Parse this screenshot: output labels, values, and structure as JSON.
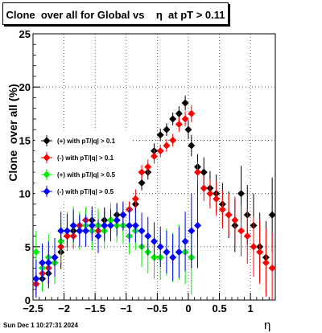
{
  "title": "Clone  over all for Global vs    η  at pT > 0.11",
  "ylabel": "Clone  over all (%)",
  "xlabel": "η",
  "footer": "Sun Dec  1 10:27:31 2024",
  "chart_data": {
    "type": "scatter",
    "title": "Clone  over all for Global vs    η  at pT > 0.11",
    "xlabel": "η",
    "ylabel": "Clone  over all (%)",
    "xlim": [
      -2.5,
      1.4
    ],
    "ylim": [
      0,
      25
    ],
    "xticks": [
      -2.5,
      -2,
      -1.5,
      -1,
      -0.5,
      0,
      0.5,
      1
    ],
    "xtick_labels": [
      "−2.5",
      "−2",
      "−1.5",
      "−1",
      "−0.5",
      "0",
      "0.5",
      "1"
    ],
    "yticks": [
      0,
      5,
      10,
      15,
      20,
      25
    ],
    "grid": true,
    "legend_position": "left-middle",
    "series": [
      {
        "name": "(+) with pT/|q| > 0.1",
        "color": "#000000",
        "points": [
          [
            -2.45,
            1.5,
            1
          ],
          [
            -2.35,
            2,
            1.2
          ],
          [
            -2.25,
            2.5,
            1.4
          ],
          [
            -2.15,
            4,
            1.8
          ],
          [
            -2.05,
            4.5,
            1.6
          ],
          [
            -1.95,
            6,
            1.4
          ],
          [
            -1.85,
            6.5,
            1.2
          ],
          [
            -1.75,
            7,
            1.1
          ],
          [
            -1.65,
            7.5,
            1.2
          ],
          [
            -1.55,
            7.5,
            1.3
          ],
          [
            -1.45,
            7,
            1.4
          ],
          [
            -1.35,
            7.5,
            1.2
          ],
          [
            -1.25,
            7.5,
            1.2
          ],
          [
            -1.15,
            8,
            1.1
          ],
          [
            -1.05,
            8,
            1.1
          ],
          [
            -0.95,
            8.5,
            1
          ],
          [
            -0.85,
            9,
            0.8
          ],
          [
            -0.75,
            11,
            0.7
          ],
          [
            -0.65,
            12,
            0.7
          ],
          [
            -0.55,
            14,
            0.7
          ],
          [
            -0.45,
            15.5,
            0.6
          ],
          [
            -0.35,
            16,
            0.6
          ],
          [
            -0.25,
            17,
            0.6
          ],
          [
            -0.15,
            17.5,
            0.7
          ],
          [
            -0.05,
            18.5,
            0.7
          ],
          [
            0.0,
            16,
            0.9
          ],
          [
            0.05,
            14.5,
            1
          ],
          [
            0.15,
            12.5,
            1.2
          ],
          [
            0.25,
            12,
            1.4
          ],
          [
            0.35,
            10.5,
            1.6
          ],
          [
            0.45,
            10,
            1.8
          ],
          [
            0.55,
            9,
            2
          ],
          [
            0.65,
            8,
            2.2
          ],
          [
            0.75,
            7,
            2.5
          ],
          [
            0.85,
            10,
            2.6
          ],
          [
            0.95,
            8,
            2.8
          ],
          [
            1.05,
            7,
            3
          ],
          [
            1.15,
            5,
            3.2
          ],
          [
            1.25,
            4,
            3.4
          ],
          [
            1.35,
            8,
            3.5
          ]
        ]
      },
      {
        "name": "(-) with pT/|q| > 0.1",
        "color": "#ff0000",
        "points": [
          [
            -2.45,
            1.5,
            1.2
          ],
          [
            -2.35,
            2.5,
            1.3
          ],
          [
            -2.25,
            3,
            1.4
          ],
          [
            -2.15,
            3.5,
            1.6
          ],
          [
            -2.05,
            5,
            1.5
          ],
          [
            -1.95,
            6,
            1.4
          ],
          [
            -1.85,
            6,
            1.2
          ],
          [
            -1.75,
            7,
            1.2
          ],
          [
            -1.65,
            7.5,
            1.2
          ],
          [
            -1.55,
            7,
            1.3
          ],
          [
            -1.45,
            6.5,
            1.3
          ],
          [
            -1.35,
            7,
            1.2
          ],
          [
            -1.25,
            7.5,
            1.2
          ],
          [
            -1.15,
            7.5,
            1.1
          ],
          [
            -1.05,
            8,
            1.1
          ],
          [
            -0.95,
            8.5,
            1
          ],
          [
            -0.85,
            9.5,
            0.9
          ],
          [
            -0.75,
            12,
            0.7
          ],
          [
            -0.65,
            12.5,
            0.7
          ],
          [
            -0.55,
            13.5,
            0.7
          ],
          [
            -0.45,
            14,
            0.6
          ],
          [
            -0.35,
            14.5,
            0.6
          ],
          [
            -0.25,
            15,
            0.6
          ],
          [
            -0.15,
            16.5,
            0.7
          ],
          [
            -0.05,
            17,
            0.7
          ],
          [
            0.05,
            17.5,
            0.8
          ],
          [
            0.15,
            12,
            1
          ],
          [
            0.25,
            10.5,
            1.2
          ],
          [
            0.35,
            10,
            1.4
          ],
          [
            0.45,
            9.5,
            1.6
          ],
          [
            0.55,
            8.5,
            1.8
          ],
          [
            0.65,
            8,
            2
          ],
          [
            0.75,
            7.5,
            2.2
          ],
          [
            0.85,
            6.5,
            2.4
          ],
          [
            0.95,
            6,
            2.6
          ],
          [
            1.05,
            5,
            2.8
          ],
          [
            1.15,
            4.5,
            3
          ],
          [
            1.25,
            3.5,
            3.2
          ],
          [
            1.35,
            3,
            3.3
          ]
        ]
      },
      {
        "name": "(+) with pT/|q| > 0.5",
        "color": "#00ee00",
        "points": [
          [
            -2.45,
            4.5,
            2
          ],
          [
            -2.35,
            3,
            2.2
          ],
          [
            -2.25,
            4,
            2.2
          ],
          [
            -2.15,
            3.5,
            2
          ],
          [
            -2.05,
            5.5,
            2
          ],
          [
            -1.95,
            6.5,
            1.8
          ],
          [
            -1.85,
            7,
            1.8
          ],
          [
            -1.75,
            6.5,
            1.8
          ],
          [
            -1.65,
            7,
            1.7
          ],
          [
            -1.55,
            6.5,
            1.8
          ],
          [
            -1.45,
            7,
            1.6
          ],
          [
            -1.35,
            6.5,
            1.7
          ],
          [
            -1.25,
            7.5,
            1.6
          ],
          [
            -1.15,
            7,
            1.6
          ],
          [
            -1.05,
            7,
            1.7
          ],
          [
            -0.95,
            6,
            1.7
          ],
          [
            -0.85,
            6.5,
            1.8
          ],
          [
            -0.75,
            5,
            1.9
          ],
          [
            -0.65,
            4.5,
            2
          ],
          [
            -0.55,
            4,
            2
          ],
          [
            -0.45,
            4,
            2.1
          ],
          [
            -0.35,
            4.5,
            2.2
          ],
          [
            -0.25,
            4,
            2.3
          ],
          [
            -0.15,
            4.5,
            2.6
          ],
          [
            -0.05,
            4.5,
            3
          ],
          [
            0.05,
            4,
            3.5
          ]
        ]
      },
      {
        "name": "(-) with pT/|q| > 0.5",
        "color": "#0000ff",
        "points": [
          [
            -2.45,
            2,
            1.8
          ],
          [
            -2.35,
            3.5,
            1.8
          ],
          [
            -2.25,
            3.5,
            2
          ],
          [
            -2.15,
            4,
            1.8
          ],
          [
            -2.05,
            6.5,
            1.8
          ],
          [
            -1.95,
            6.5,
            1.6
          ],
          [
            -1.85,
            7,
            1.5
          ],
          [
            -1.75,
            6.5,
            1.5
          ],
          [
            -1.65,
            6.5,
            1.5
          ],
          [
            -1.55,
            7,
            1.5
          ],
          [
            -1.45,
            6,
            1.6
          ],
          [
            -1.35,
            7,
            1.5
          ],
          [
            -1.25,
            7,
            1.5
          ],
          [
            -1.15,
            7.5,
            1.5
          ],
          [
            -1.05,
            8,
            1.5
          ],
          [
            -0.95,
            7,
            1.6
          ],
          [
            -0.85,
            7,
            1.6
          ],
          [
            -0.75,
            6.5,
            1.7
          ],
          [
            -0.65,
            6,
            1.8
          ],
          [
            -0.55,
            5.5,
            1.8
          ],
          [
            -0.45,
            5,
            1.9
          ],
          [
            -0.35,
            4.5,
            2
          ],
          [
            -0.25,
            4,
            2.2
          ],
          [
            -0.15,
            4.5,
            2.4
          ],
          [
            -0.05,
            5.5,
            2.8
          ],
          [
            0.05,
            6.5,
            3.5
          ],
          [
            0.15,
            7,
            4
          ]
        ]
      }
    ]
  }
}
